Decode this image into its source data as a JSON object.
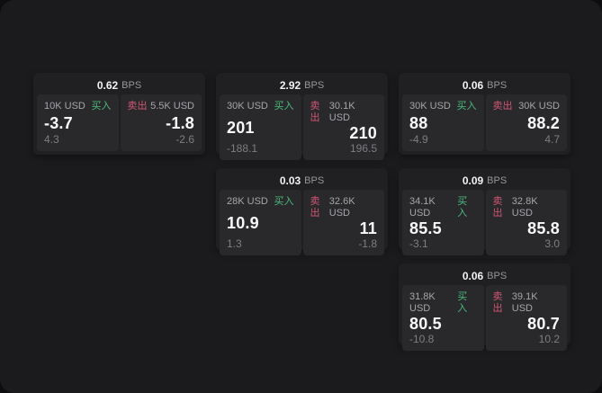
{
  "labels": {
    "unit": "BPS",
    "buy": "买入",
    "sell": "卖出"
  },
  "colors": {
    "outer_bg": "#0e0e10",
    "surface_bg": "#1b1b1d",
    "card_bg": "#202022",
    "panel_bg": "#29292c",
    "buy_accent": "#4cba7c",
    "sell_accent": "#d15673"
  },
  "cards": [
    {
      "bps": "0.62",
      "buy": {
        "notional": "10K USD",
        "price": "-3.7",
        "sub": "4.3"
      },
      "sell": {
        "notional": "5.5K USD",
        "price": "-1.8",
        "sub": "-2.6"
      }
    },
    {
      "bps": "2.92",
      "buy": {
        "notional": "30K USD",
        "price": "201",
        "sub": "-188.1"
      },
      "sell": {
        "notional": "30.1K USD",
        "price": "210",
        "sub": "196.5"
      }
    },
    {
      "bps": "0.06",
      "buy": {
        "notional": "30K USD",
        "price": "88",
        "sub": "-4.9"
      },
      "sell": {
        "notional": "30K USD",
        "price": "88.2",
        "sub": "4.7"
      }
    },
    {
      "bps": "0.03",
      "buy": {
        "notional": "28K USD",
        "price": "10.9",
        "sub": "1.3"
      },
      "sell": {
        "notional": "32.6K USD",
        "price": "11",
        "sub": "-1.8"
      }
    },
    {
      "bps": "0.09",
      "buy": {
        "notional": "34.1K USD",
        "price": "85.5",
        "sub": "-3.1"
      },
      "sell": {
        "notional": "32.8K USD",
        "price": "85.8",
        "sub": "3.0"
      }
    },
    {
      "bps": "0.06",
      "buy": {
        "notional": "31.8K USD",
        "price": "80.5",
        "sub": "-10.8"
      },
      "sell": {
        "notional": "39.1K USD",
        "price": "80.7",
        "sub": "10.2"
      }
    }
  ]
}
